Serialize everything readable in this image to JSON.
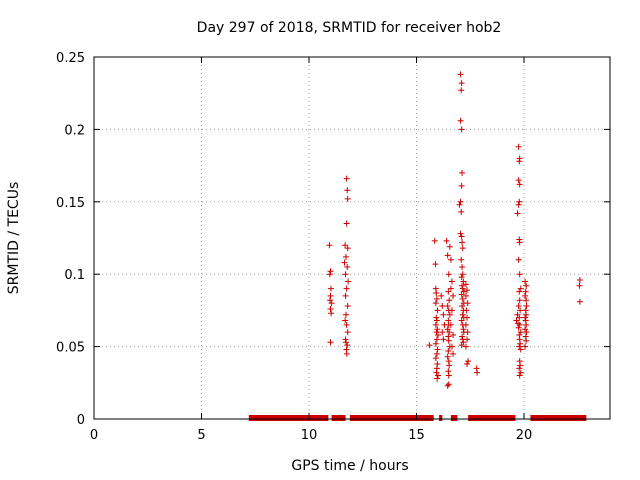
{
  "chart_data": {
    "type": "scatter",
    "title": "Day 297 of 2018, SRMTID for receiver hob2",
    "xlabel": "GPS time / hours",
    "ylabel": "SRMTID / TECUs",
    "xlim": [
      0,
      24
    ],
    "ylim": [
      0,
      0.25
    ],
    "xticks": [
      0,
      5,
      10,
      15,
      20
    ],
    "yticks": [
      0,
      0.05,
      0.1,
      0.15,
      0.2,
      0.25
    ],
    "xtick_labels": [
      "0",
      "5",
      "10",
      "15",
      "20"
    ],
    "ytick_labels": [
      "0",
      "0.05",
      "0.1",
      "0.15",
      "0.2",
      "0.25"
    ],
    "grid": true,
    "marker": "+",
    "color": "#cc0000",
    "zero_segments": [
      [
        7.2,
        10.9
      ],
      [
        11.05,
        11.7
      ],
      [
        11.9,
        15.8
      ],
      [
        16.05,
        16.2
      ],
      [
        16.6,
        16.9
      ],
      [
        17.4,
        19.6
      ],
      [
        20.3,
        22.9
      ]
    ],
    "points": [
      [
        10.95,
        0.12
      ],
      [
        11.0,
        0.102
      ],
      [
        10.97,
        0.1
      ],
      [
        11.02,
        0.09
      ],
      [
        11.0,
        0.085
      ],
      [
        10.98,
        0.082
      ],
      [
        11.05,
        0.08
      ],
      [
        11.0,
        0.076
      ],
      [
        11.03,
        0.073
      ],
      [
        11.0,
        0.053
      ],
      [
        11.75,
        0.166
      ],
      [
        11.78,
        0.158
      ],
      [
        11.8,
        0.152
      ],
      [
        11.75,
        0.135
      ],
      [
        11.68,
        0.12
      ],
      [
        11.8,
        0.118
      ],
      [
        11.72,
        0.112
      ],
      [
        11.65,
        0.108
      ],
      [
        11.78,
        0.105
      ],
      [
        11.7,
        0.1
      ],
      [
        11.82,
        0.095
      ],
      [
        11.75,
        0.09
      ],
      [
        11.7,
        0.085
      ],
      [
        11.8,
        0.078
      ],
      [
        11.72,
        0.072
      ],
      [
        11.68,
        0.068
      ],
      [
        11.75,
        0.065
      ],
      [
        11.8,
        0.06
      ],
      [
        11.7,
        0.055
      ],
      [
        11.72,
        0.053
      ],
      [
        11.78,
        0.051
      ],
      [
        11.74,
        0.048
      ],
      [
        11.76,
        0.045
      ],
      [
        15.6,
        0.051
      ],
      [
        15.85,
        0.123
      ],
      [
        15.88,
        0.107
      ],
      [
        15.9,
        0.09
      ],
      [
        15.92,
        0.087
      ],
      [
        15.95,
        0.083
      ],
      [
        15.9,
        0.08
      ],
      [
        15.98,
        0.075
      ],
      [
        15.92,
        0.07
      ],
      [
        15.95,
        0.068
      ],
      [
        15.9,
        0.065
      ],
      [
        15.97,
        0.062
      ],
      [
        15.93,
        0.06
      ],
      [
        16.0,
        0.058
      ],
      [
        15.95,
        0.055
      ],
      [
        15.9,
        0.052
      ],
      [
        15.98,
        0.048
      ],
      [
        15.95,
        0.045
      ],
      [
        15.9,
        0.042
      ],
      [
        15.97,
        0.038
      ],
      [
        15.95,
        0.035
      ],
      [
        15.93,
        0.032
      ],
      [
        16.0,
        0.03
      ],
      [
        15.96,
        0.028
      ],
      [
        16.15,
        0.085
      ],
      [
        16.2,
        0.078
      ],
      [
        16.25,
        0.072
      ],
      [
        16.3,
        0.065
      ],
      [
        16.2,
        0.06
      ],
      [
        16.25,
        0.055
      ],
      [
        16.4,
        0.123
      ],
      [
        16.45,
        0.113
      ],
      [
        16.5,
        0.1
      ],
      [
        16.48,
        0.088
      ],
      [
        16.52,
        0.082
      ],
      [
        16.45,
        0.078
      ],
      [
        16.5,
        0.075
      ],
      [
        16.55,
        0.072
      ],
      [
        16.48,
        0.068
      ],
      [
        16.5,
        0.065
      ],
      [
        16.45,
        0.062
      ],
      [
        16.52,
        0.06
      ],
      [
        16.48,
        0.057
      ],
      [
        16.5,
        0.054
      ],
      [
        16.55,
        0.05
      ],
      [
        16.48,
        0.047
      ],
      [
        16.45,
        0.043
      ],
      [
        16.5,
        0.04
      ],
      [
        16.52,
        0.037
      ],
      [
        16.48,
        0.033
      ],
      [
        16.5,
        0.03
      ],
      [
        16.45,
        0.023
      ],
      [
        16.5,
        0.024
      ],
      [
        16.55,
        0.119
      ],
      [
        16.6,
        0.11
      ],
      [
        16.65,
        0.095
      ],
      [
        16.6,
        0.09
      ],
      [
        16.7,
        0.085
      ],
      [
        16.65,
        0.075
      ],
      [
        16.6,
        0.065
      ],
      [
        16.7,
        0.058
      ],
      [
        16.65,
        0.05
      ],
      [
        16.7,
        0.045
      ],
      [
        17.05,
        0.238
      ],
      [
        17.1,
        0.232
      ],
      [
        17.08,
        0.227
      ],
      [
        17.05,
        0.206
      ],
      [
        17.1,
        0.2
      ],
      [
        17.12,
        0.17
      ],
      [
        17.1,
        0.161
      ],
      [
        17.05,
        0.15
      ],
      [
        17.0,
        0.148
      ],
      [
        17.08,
        0.143
      ],
      [
        17.05,
        0.128
      ],
      [
        17.1,
        0.126
      ],
      [
        17.12,
        0.122
      ],
      [
        17.15,
        0.118
      ],
      [
        17.08,
        0.11
      ],
      [
        17.12,
        0.105
      ],
      [
        17.15,
        0.1
      ],
      [
        17.1,
        0.098
      ],
      [
        17.18,
        0.095
      ],
      [
        17.12,
        0.092
      ],
      [
        17.15,
        0.09
      ],
      [
        17.2,
        0.088
      ],
      [
        17.1,
        0.086
      ],
      [
        17.15,
        0.083
      ],
      [
        17.2,
        0.08
      ],
      [
        17.12,
        0.078
      ],
      [
        17.18,
        0.075
      ],
      [
        17.15,
        0.072
      ],
      [
        17.2,
        0.07
      ],
      [
        17.1,
        0.068
      ],
      [
        17.15,
        0.065
      ],
      [
        17.18,
        0.062
      ],
      [
        17.2,
        0.06
      ],
      [
        17.12,
        0.057
      ],
      [
        17.15,
        0.055
      ],
      [
        17.18,
        0.053
      ],
      [
        17.1,
        0.051
      ],
      [
        17.3,
        0.093
      ],
      [
        17.35,
        0.089
      ],
      [
        17.3,
        0.085
      ],
      [
        17.38,
        0.08
      ],
      [
        17.32,
        0.075
      ],
      [
        17.35,
        0.07
      ],
      [
        17.3,
        0.065
      ],
      [
        17.38,
        0.06
      ],
      [
        17.35,
        0.055
      ],
      [
        17.3,
        0.05
      ],
      [
        17.4,
        0.04
      ],
      [
        17.35,
        0.038
      ],
      [
        17.8,
        0.035
      ],
      [
        17.82,
        0.032
      ],
      [
        19.75,
        0.188
      ],
      [
        19.8,
        0.18
      ],
      [
        19.78,
        0.178
      ],
      [
        19.75,
        0.165
      ],
      [
        19.8,
        0.162
      ],
      [
        19.78,
        0.15
      ],
      [
        19.75,
        0.148
      ],
      [
        19.7,
        0.142
      ],
      [
        19.78,
        0.124
      ],
      [
        19.8,
        0.122
      ],
      [
        19.75,
        0.11
      ],
      [
        19.8,
        0.1
      ],
      [
        19.85,
        0.09
      ],
      [
        19.78,
        0.088
      ],
      [
        19.8,
        0.082
      ],
      [
        19.75,
        0.078
      ],
      [
        19.82,
        0.075
      ],
      [
        19.7,
        0.072
      ],
      [
        19.78,
        0.07
      ],
      [
        19.65,
        0.068
      ],
      [
        19.72,
        0.066
      ],
      [
        19.8,
        0.065
      ],
      [
        19.75,
        0.063
      ],
      [
        19.85,
        0.06
      ],
      [
        19.78,
        0.058
      ],
      [
        19.8,
        0.055
      ],
      [
        19.82,
        0.052
      ],
      [
        19.78,
        0.05
      ],
      [
        19.85,
        0.048
      ],
      [
        19.8,
        0.04
      ],
      [
        19.82,
        0.037
      ],
      [
        19.78,
        0.035
      ],
      [
        19.85,
        0.032
      ],
      [
        19.8,
        0.03
      ],
      [
        20.05,
        0.095
      ],
      [
        20.1,
        0.092
      ],
      [
        20.08,
        0.088
      ],
      [
        20.05,
        0.085
      ],
      [
        20.1,
        0.082
      ],
      [
        20.12,
        0.078
      ],
      [
        20.08,
        0.075
      ],
      [
        20.1,
        0.072
      ],
      [
        20.05,
        0.07
      ],
      [
        20.08,
        0.068
      ],
      [
        20.1,
        0.065
      ],
      [
        20.05,
        0.062
      ],
      [
        20.12,
        0.06
      ],
      [
        20.08,
        0.057
      ],
      [
        20.1,
        0.054
      ],
      [
        20.05,
        0.05
      ],
      [
        22.6,
        0.096
      ],
      [
        22.58,
        0.092
      ],
      [
        22.6,
        0.081
      ]
    ]
  }
}
